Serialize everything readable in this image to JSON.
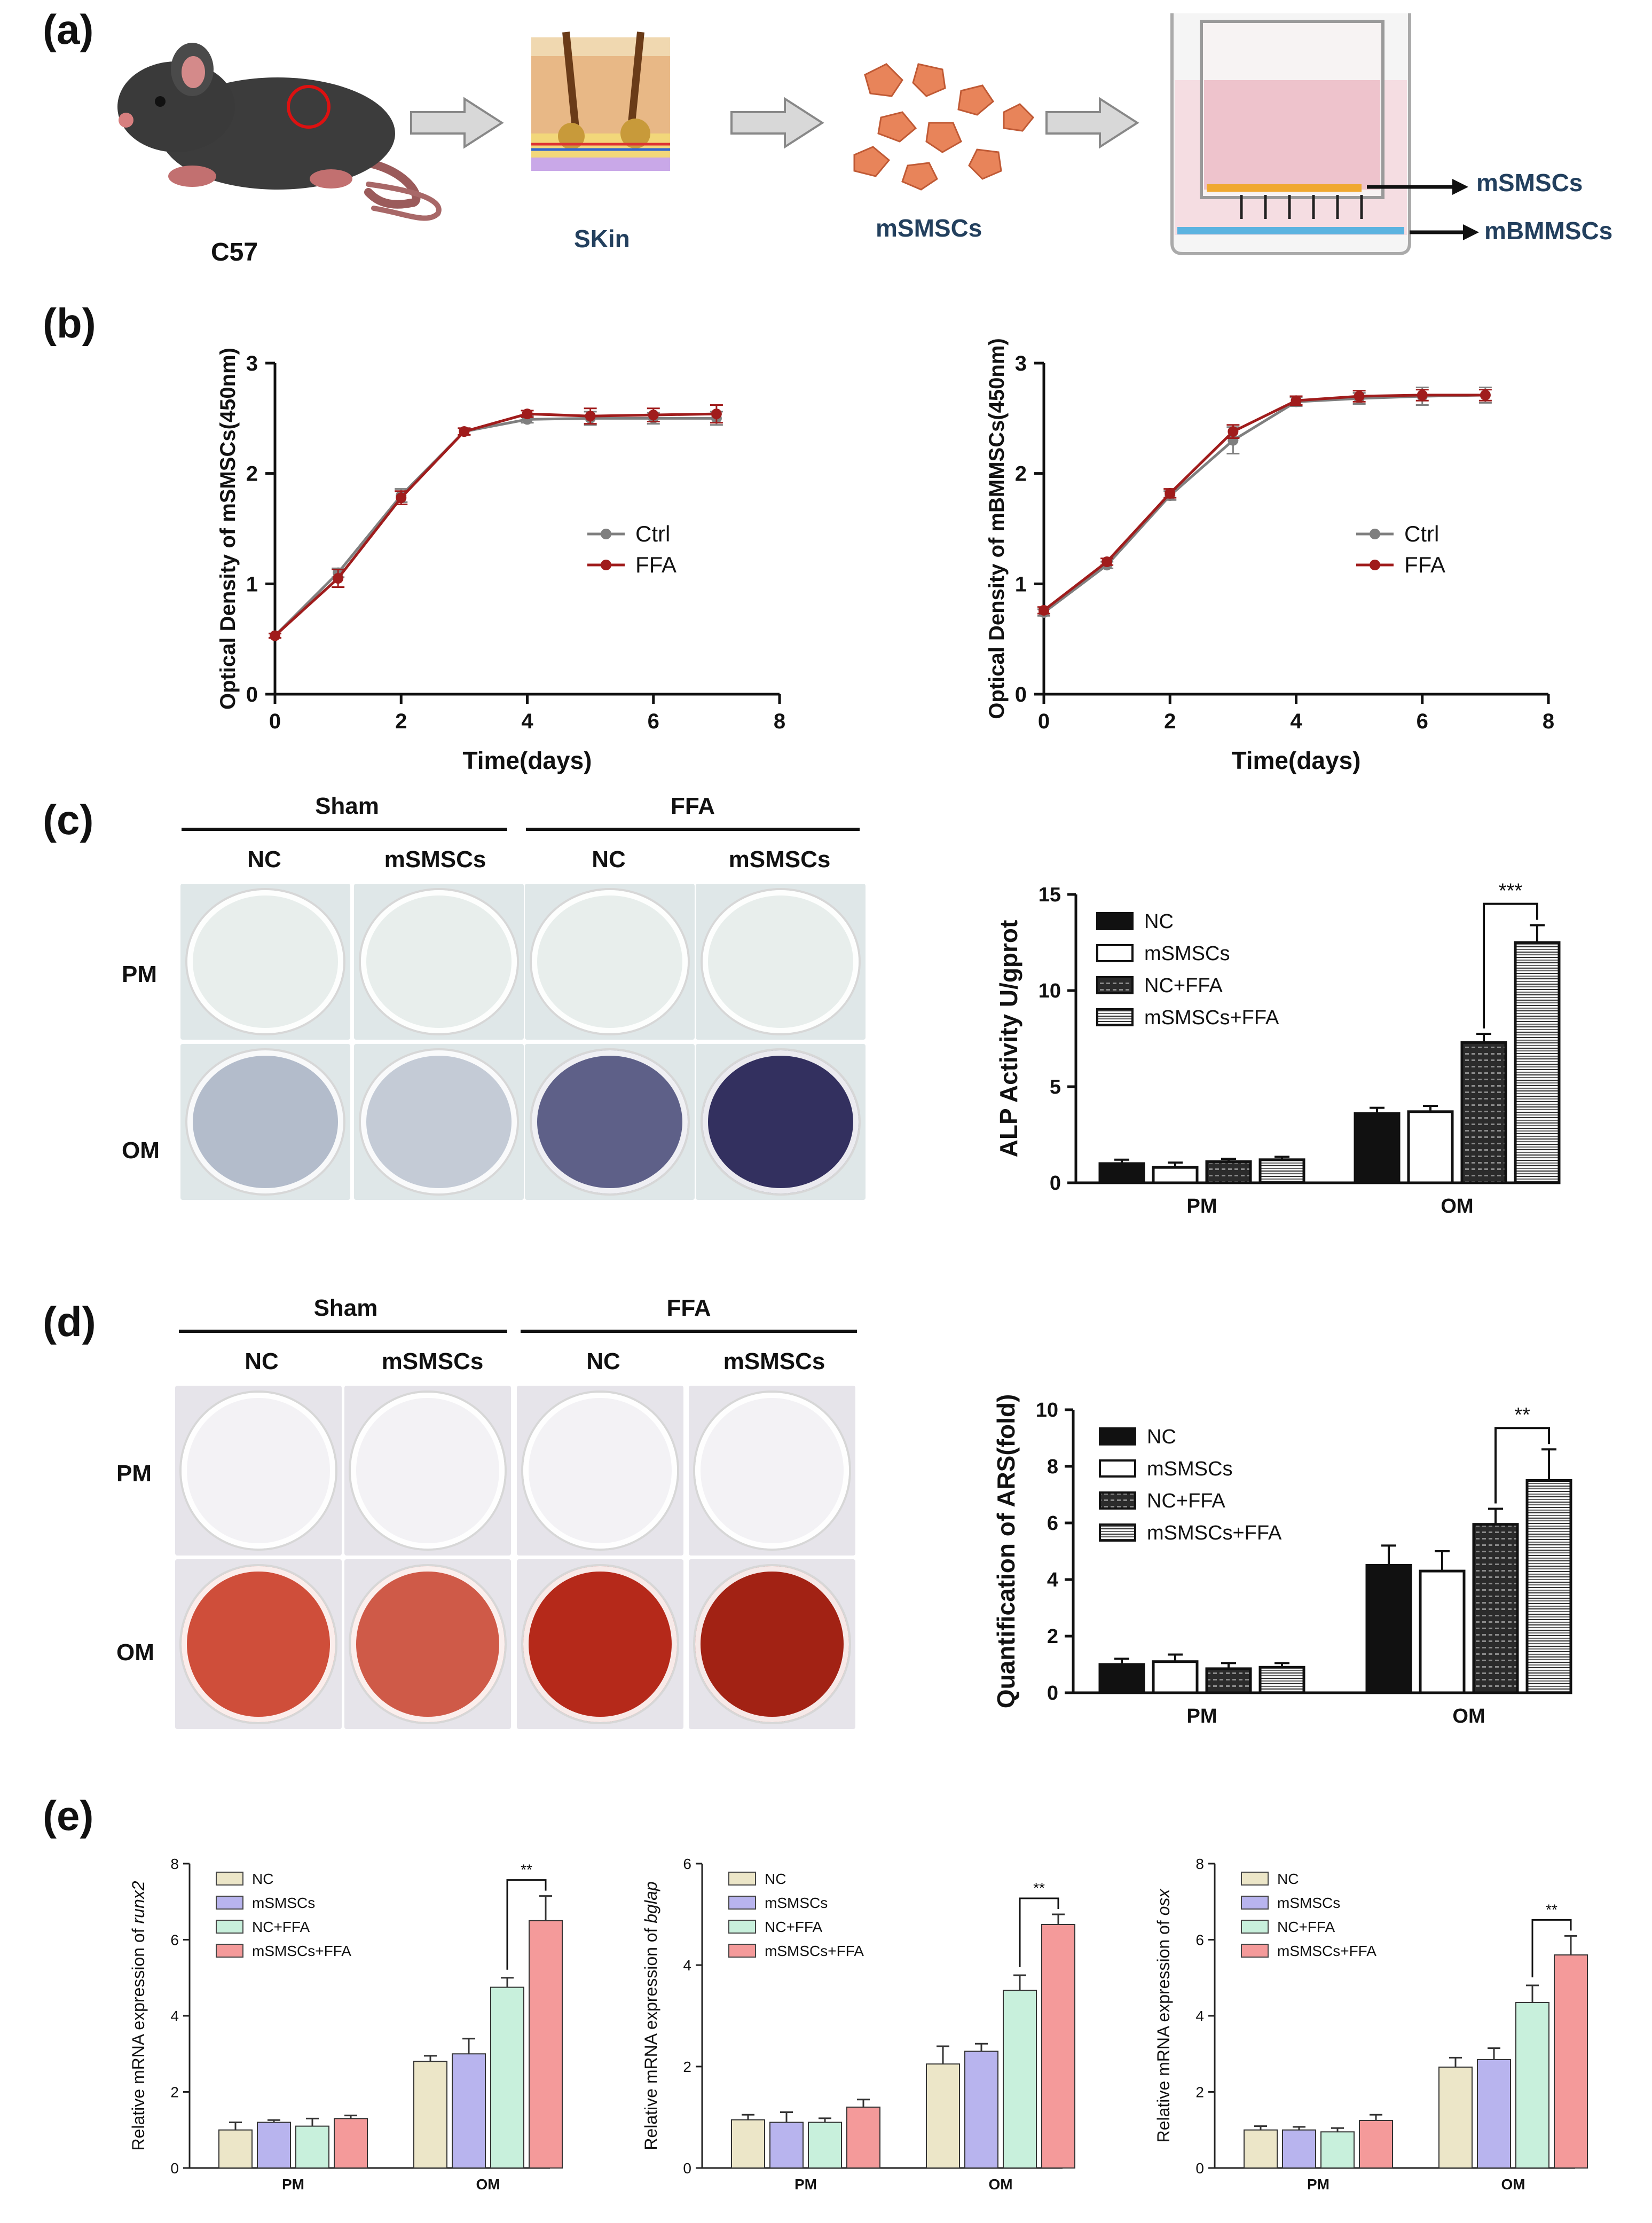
{
  "panel_labels": {
    "a": "(a)",
    "b": "(b)",
    "c": "(c)",
    "d": "(d)",
    "e": "(e)"
  },
  "schematic": {
    "mouse_label": "C57",
    "skin_label": "SKin",
    "cells_label": "mSMSCs",
    "upper_label": "mSMSCs",
    "lower_label": "mBMMSCs"
  },
  "staining": {
    "group_left": "Sham",
    "group_right": "FFA",
    "columns": [
      "NC",
      "mSMSCs",
      "NC",
      "mSMSCs"
    ],
    "rows": [
      "PM",
      "OM"
    ]
  },
  "colors": {
    "ctrl": "#7f7f7f",
    "ffa": "#a01c1c",
    "nc_bar": "#111111",
    "e_nc": "#ece6c8",
    "e_msmscs": "#b8b4ee",
    "e_ncffa": "#c8f0dc",
    "e_msmscsffa": "#f49a9a",
    "alp_dish_pm": "#e8eeec",
    "alp_dish_om": [
      "#b3bccb",
      "#c4cbd6",
      "#5e6088",
      "#33305f"
    ],
    "ars_dish_pm": "#f3f2f5",
    "ars_dish_om": [
      "#cf4e3a",
      "#cf5a48",
      "#b5291a",
      "#a22214"
    ]
  },
  "chart_data": [
    {
      "id": "b1",
      "type": "line",
      "ylabel": "Optical Density of mSMSCs(450nm)",
      "xlabel": "Time(days)",
      "xlim": [
        0,
        8
      ],
      "ylim": [
        0,
        3
      ],
      "xticks": [
        0,
        2,
        4,
        6,
        8
      ],
      "yticks": [
        0,
        1,
        2,
        3
      ],
      "legend": [
        "Ctrl",
        "FFA"
      ],
      "legend_position": "right",
      "series": [
        {
          "name": "Ctrl",
          "x": [
            0,
            1,
            2,
            3,
            4,
            5,
            6,
            7
          ],
          "y": [
            0.53,
            1.1,
            1.8,
            2.38,
            2.49,
            2.5,
            2.5,
            2.5
          ],
          "err": [
            0.02,
            0.04,
            0.06,
            0.03,
            0.03,
            0.06,
            0.05,
            0.06
          ]
        },
        {
          "name": "FFA",
          "x": [
            0,
            1,
            2,
            3,
            4,
            5,
            6,
            7
          ],
          "y": [
            0.53,
            1.05,
            1.78,
            2.38,
            2.54,
            2.52,
            2.53,
            2.54
          ],
          "err": [
            0.02,
            0.08,
            0.06,
            0.03,
            0.03,
            0.07,
            0.06,
            0.08
          ]
        }
      ]
    },
    {
      "id": "b2",
      "type": "line",
      "ylabel": "Optical Density of mBMMSCs(450nm)",
      "xlabel": "Time(days)",
      "xlim": [
        0,
        8
      ],
      "ylim": [
        0,
        3
      ],
      "xticks": [
        0,
        2,
        4,
        6,
        8
      ],
      "yticks": [
        0,
        1,
        2,
        3
      ],
      "legend": [
        "Ctrl",
        "FFA"
      ],
      "legend_position": "right",
      "series": [
        {
          "name": "Ctrl",
          "x": [
            0,
            1,
            2,
            3,
            4,
            5,
            6,
            7
          ],
          "y": [
            0.74,
            1.17,
            1.8,
            2.3,
            2.65,
            2.68,
            2.7,
            2.71
          ],
          "err": [
            0.03,
            0.03,
            0.04,
            0.12,
            0.04,
            0.05,
            0.08,
            0.07
          ]
        },
        {
          "name": "FFA",
          "x": [
            0,
            1,
            2,
            3,
            4,
            5,
            6,
            7
          ],
          "y": [
            0.76,
            1.2,
            1.82,
            2.38,
            2.66,
            2.7,
            2.71,
            2.71
          ],
          "err": [
            0.03,
            0.03,
            0.04,
            0.06,
            0.04,
            0.05,
            0.05,
            0.05
          ]
        }
      ]
    },
    {
      "id": "c",
      "type": "bar",
      "ylabel": "ALP Activity U/gprot",
      "categories": [
        "PM",
        "OM"
      ],
      "ylim": [
        0,
        15
      ],
      "yticks": [
        0,
        5,
        10,
        15
      ],
      "legend": [
        "NC",
        "mSMSCs",
        "NC+FFA",
        "mSMSCs+FFA"
      ],
      "series": [
        {
          "name": "NC",
          "values": [
            1.0,
            3.6
          ],
          "err": [
            0.2,
            0.3
          ]
        },
        {
          "name": "mSMSCs",
          "values": [
            0.8,
            3.7
          ],
          "err": [
            0.25,
            0.3
          ]
        },
        {
          "name": "NC+FFA",
          "values": [
            1.1,
            7.3
          ],
          "err": [
            0.15,
            0.45
          ]
        },
        {
          "name": "mSMSCs+FFA",
          "values": [
            1.2,
            12.5
          ],
          "err": [
            0.15,
            0.9
          ]
        }
      ],
      "significance": {
        "label": "***",
        "category": "OM",
        "between": [
          "NC+FFA",
          "mSMSCs+FFA"
        ]
      }
    },
    {
      "id": "d",
      "type": "bar",
      "ylabel": "Quantification of ARS(fold)",
      "categories": [
        "PM",
        "OM"
      ],
      "ylim": [
        0,
        10
      ],
      "yticks": [
        0,
        2,
        4,
        6,
        8,
        10
      ],
      "legend": [
        "NC",
        "mSMSCs",
        "NC+FFA",
        "mSMSCs+FFA"
      ],
      "series": [
        {
          "name": "NC",
          "values": [
            1.0,
            4.5
          ],
          "err": [
            0.2,
            0.7
          ]
        },
        {
          "name": "mSMSCs",
          "values": [
            1.1,
            4.3
          ],
          "err": [
            0.25,
            0.7
          ]
        },
        {
          "name": "NC+FFA",
          "values": [
            0.85,
            5.95
          ],
          "err": [
            0.2,
            0.55
          ]
        },
        {
          "name": "mSMSCs+FFA",
          "values": [
            0.9,
            7.5
          ],
          "err": [
            0.15,
            1.1
          ]
        }
      ],
      "significance": {
        "label": "**",
        "category": "OM",
        "between": [
          "NC+FFA",
          "mSMSCs+FFA"
        ]
      }
    },
    {
      "id": "e1",
      "type": "bar",
      "ylabel_prefix": "Relative mRNA expression of ",
      "ylabel_gene": "runx2",
      "categories": [
        "PM",
        "OM"
      ],
      "ylim": [
        0,
        8
      ],
      "yticks": [
        0,
        2,
        4,
        6,
        8
      ],
      "legend": [
        "NC",
        "mSMSCs",
        "NC+FFA",
        "mSMSCs+FFA"
      ],
      "series": [
        {
          "name": "NC",
          "values": [
            1.0,
            2.8
          ],
          "err": [
            0.2,
            0.15
          ]
        },
        {
          "name": "mSMSCs",
          "values": [
            1.2,
            3.0
          ],
          "err": [
            0.06,
            0.4
          ]
        },
        {
          "name": "NC+FFA",
          "values": [
            1.1,
            4.75
          ],
          "err": [
            0.2,
            0.25
          ]
        },
        {
          "name": "mSMSCs+FFA",
          "values": [
            1.3,
            6.5
          ],
          "err": [
            0.08,
            0.65
          ]
        }
      ],
      "significance": {
        "label": "**",
        "category": "OM",
        "between": [
          "NC+FFA",
          "mSMSCs+FFA"
        ]
      }
    },
    {
      "id": "e2",
      "type": "bar",
      "ylabel_prefix": "Relative mRNA expression of ",
      "ylabel_gene": "bglap",
      "categories": [
        "PM",
        "OM"
      ],
      "ylim": [
        0,
        6
      ],
      "yticks": [
        0,
        2,
        4,
        6
      ],
      "legend": [
        "NC",
        "mSMSCs",
        "NC+FFA",
        "mSMSCs+FFA"
      ],
      "series": [
        {
          "name": "NC",
          "values": [
            0.95,
            2.05
          ],
          "err": [
            0.1,
            0.35
          ]
        },
        {
          "name": "mSMSCs",
          "values": [
            0.9,
            2.3
          ],
          "err": [
            0.2,
            0.15
          ]
        },
        {
          "name": "NC+FFA",
          "values": [
            0.9,
            3.5
          ],
          "err": [
            0.08,
            0.3
          ]
        },
        {
          "name": "mSMSCs+FFA",
          "values": [
            1.2,
            4.8
          ],
          "err": [
            0.15,
            0.2
          ]
        }
      ],
      "significance": {
        "label": "**",
        "category": "OM",
        "between": [
          "NC+FFA",
          "mSMSCs+FFA"
        ]
      }
    },
    {
      "id": "e3",
      "type": "bar",
      "ylabel_prefix": "Relative mRNA expression of ",
      "ylabel_gene": "osx",
      "categories": [
        "PM",
        "OM"
      ],
      "ylim": [
        0,
        8
      ],
      "yticks": [
        0,
        2,
        4,
        6,
        8
      ],
      "legend": [
        "NC",
        "mSMSCs",
        "NC+FFA",
        "mSMSCs+FFA"
      ],
      "series": [
        {
          "name": "NC",
          "values": [
            1.0,
            2.65
          ],
          "err": [
            0.1,
            0.25
          ]
        },
        {
          "name": "mSMSCs",
          "values": [
            1.0,
            2.85
          ],
          "err": [
            0.08,
            0.3
          ]
        },
        {
          "name": "NC+FFA",
          "values": [
            0.95,
            4.35
          ],
          "err": [
            0.1,
            0.45
          ]
        },
        {
          "name": "mSMSCs+FFA",
          "values": [
            1.25,
            5.6
          ],
          "err": [
            0.15,
            0.5
          ]
        }
      ],
      "significance": {
        "label": "**",
        "category": "OM",
        "between": [
          "NC+FFA",
          "mSMSCs+FFA"
        ]
      }
    }
  ]
}
